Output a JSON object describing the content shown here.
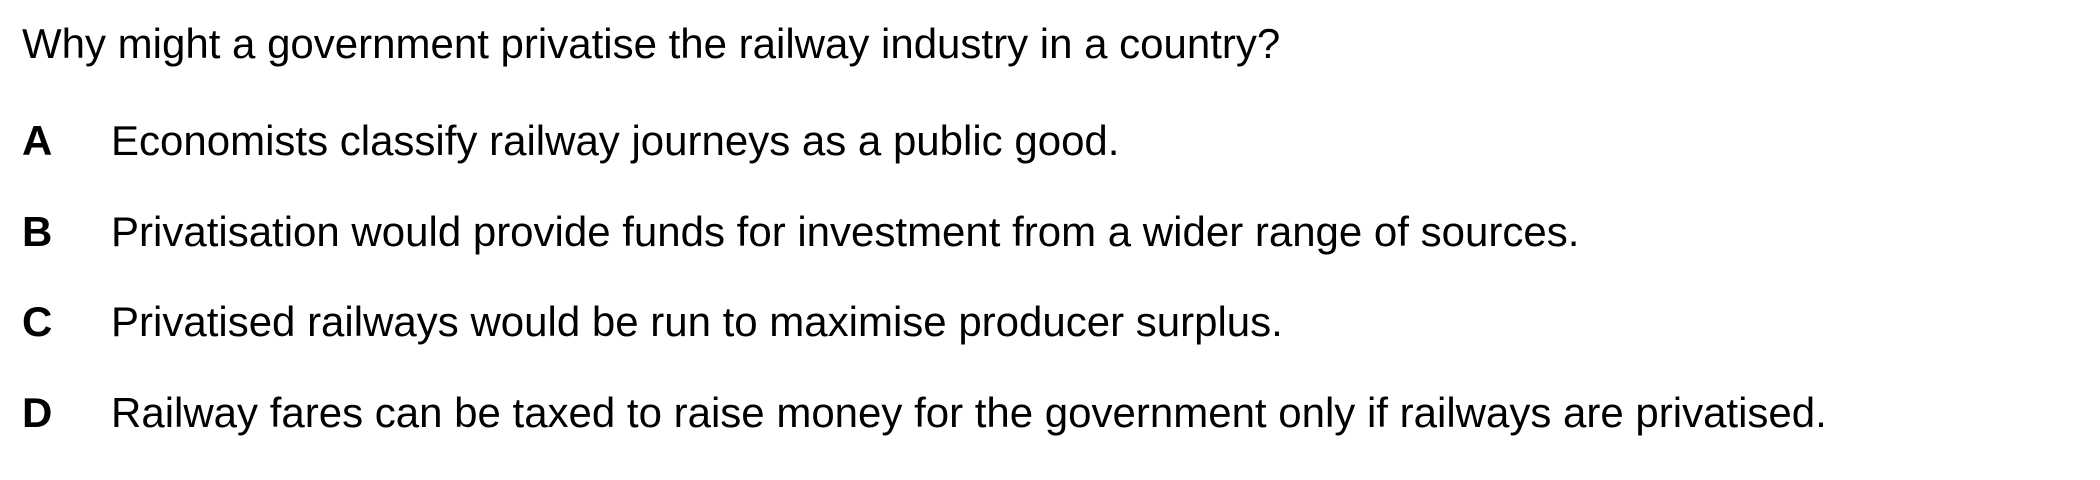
{
  "question": {
    "text": "Why might a government privatise the railway industry in a country?"
  },
  "options": [
    {
      "letter": "A",
      "text": "Economists classify railway journeys as a public good."
    },
    {
      "letter": "B",
      "text": "Privatisation would provide funds for investment from a wider range of sources."
    },
    {
      "letter": "C",
      "text": "Privatised railways would be run to maximise producer surplus."
    },
    {
      "letter": "D",
      "text": "Railway fares can be taxed to raise money for the government only if railways are privatised."
    }
  ]
}
